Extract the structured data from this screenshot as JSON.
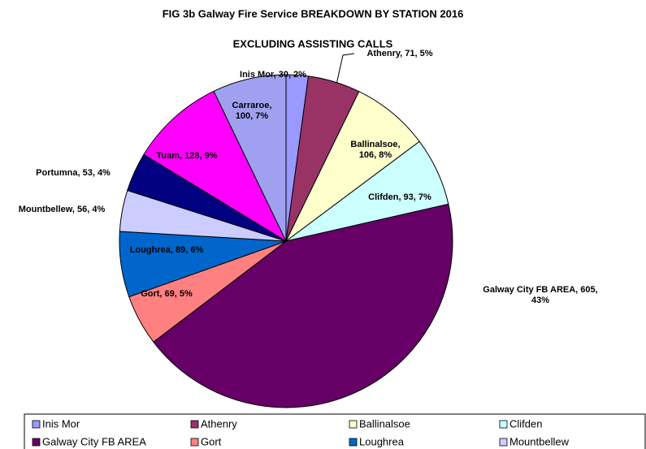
{
  "chart_data": {
    "type": "pie",
    "title": "FIG  3b Galway Fire Service  BREAKDOWN BY STATION 2016",
    "subtitle": "EXCLUDING ASSISTING CALLS",
    "categories": [
      "Inis Mor",
      "Athenry",
      "Ballinalsoe",
      "Clifden",
      "Galway City FB AREA",
      "Gort",
      "Loughrea",
      "Mountbellew",
      "Portumna",
      "Tuam",
      "Carraroe"
    ],
    "values": [
      30,
      71,
      106,
      93,
      605,
      69,
      89,
      56,
      53,
      128,
      100
    ],
    "value_labels": [
      [
        "Inis Mor, 30, 2%"
      ],
      [
        "Athenry, 71, 5%"
      ],
      [
        "Ballinalsoe,",
        "106, 8%"
      ],
      [
        "Clifden, 93, 7%"
      ],
      [
        "Galway City FB AREA, 605,",
        "43%"
      ],
      [
        "Gort, 69, 5%"
      ],
      [
        "Loughrea, 89, 6%"
      ],
      [
        "Mountbellew, 56, 4%"
      ],
      [
        "Portumna, 53, 4%"
      ],
      [
        "Tuam, 128, 9%"
      ],
      [
        "Carraroe,",
        "100, 7%"
      ]
    ],
    "colors": [
      "#9999ff",
      "#993366",
      "#ffffcc",
      "#ccffff",
      "#660066",
      "#ff8080",
      "#0066cc",
      "#ccccff",
      "#000080",
      "#ff00ff",
      "#a0a0f0"
    ]
  }
}
